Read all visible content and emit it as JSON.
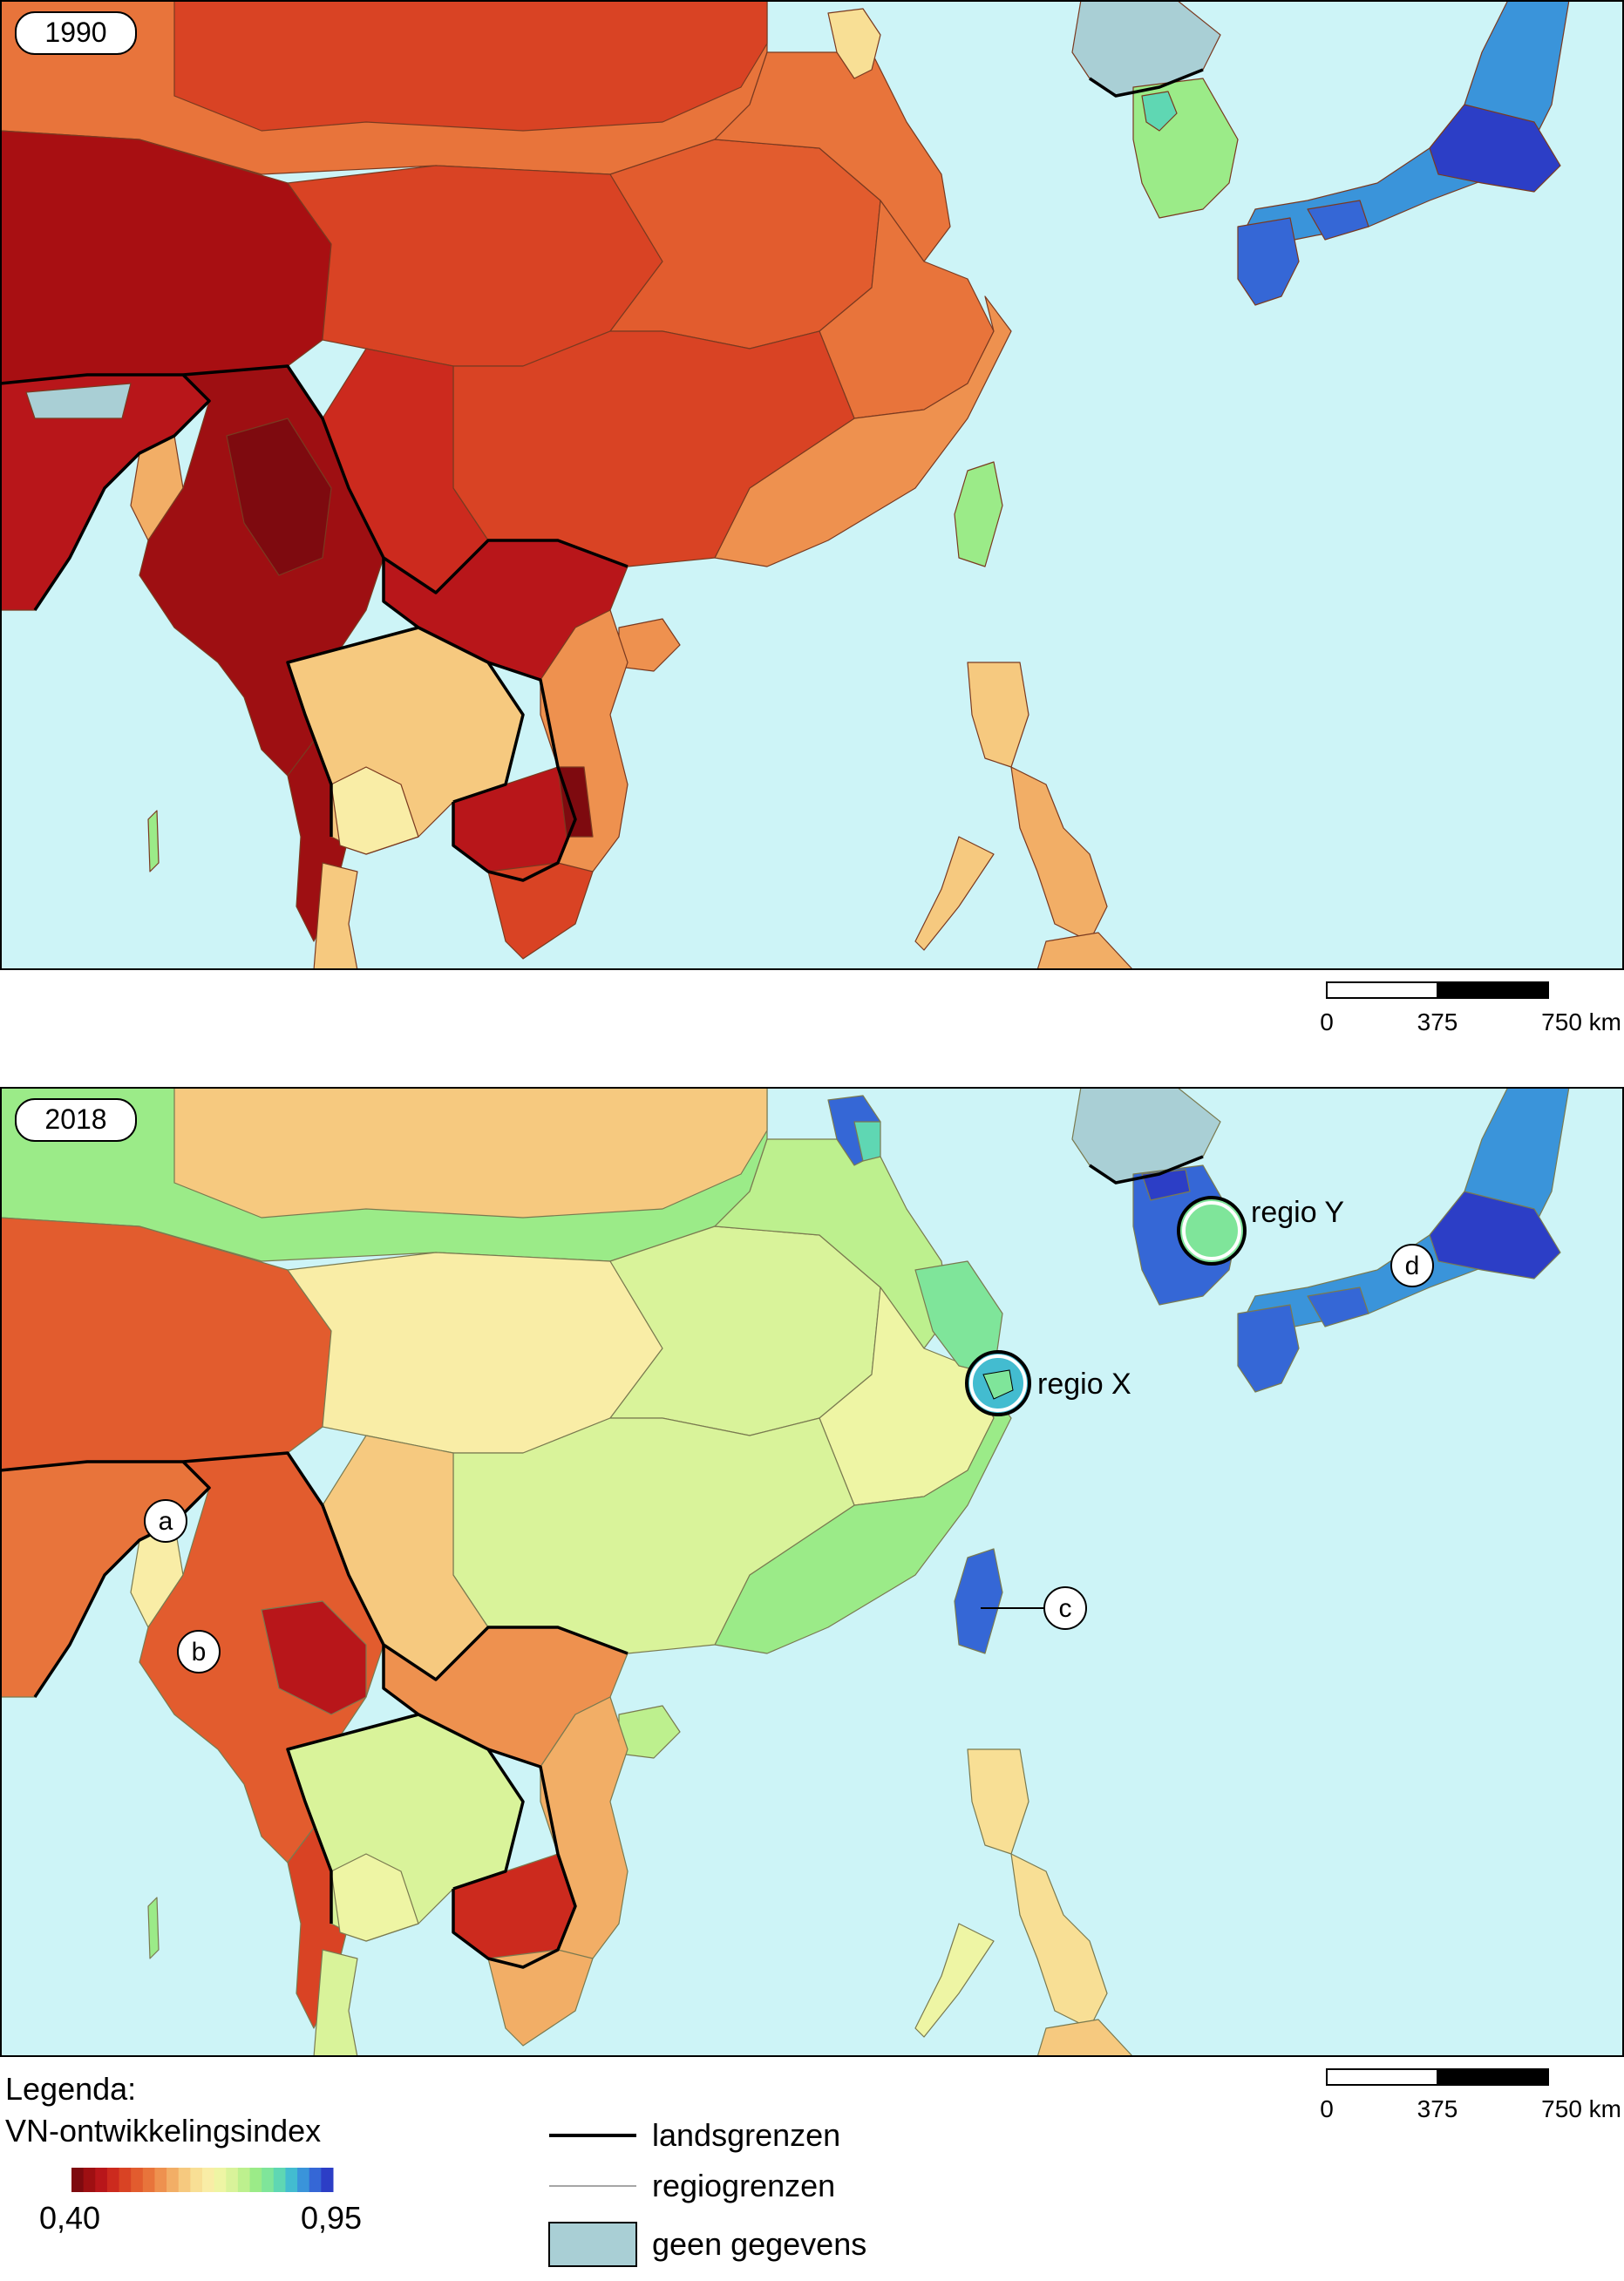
{
  "maps": [
    {
      "year": "1990"
    },
    {
      "year": "2018",
      "labels": [
        "regio X",
        "regio Y"
      ],
      "markers": [
        "a",
        "b",
        "c",
        "d"
      ]
    }
  ],
  "scalebar": {
    "ticks": [
      "0",
      "375",
      "750 km"
    ]
  },
  "legend": {
    "title": "Legenda:",
    "subtitle": "VN-ontwikkelingsindex",
    "min": "0,40",
    "max": "0,95",
    "items": {
      "country": "landsgrenzen",
      "region": "regiogrenzen",
      "nodata": "geen gegevens"
    },
    "ramp": [
      "#7e0a0f",
      "#9e0f12",
      "#b8161a",
      "#cc2a1e",
      "#d94324",
      "#e25c2e",
      "#e8743b",
      "#ee914f",
      "#f2ae66",
      "#f6c97f",
      "#f8df95",
      "#f9eda6",
      "#eef5a4",
      "#d9f39a",
      "#bdf08e",
      "#9beb88",
      "#7fe59a",
      "#5fd7b3",
      "#43bcd0",
      "#3a94da",
      "#3567d6",
      "#2c3ec6"
    ],
    "colors": {
      "sea": "#cdf4f7",
      "nodata": "#a9cfd5",
      "border": "#000000"
    }
  }
}
